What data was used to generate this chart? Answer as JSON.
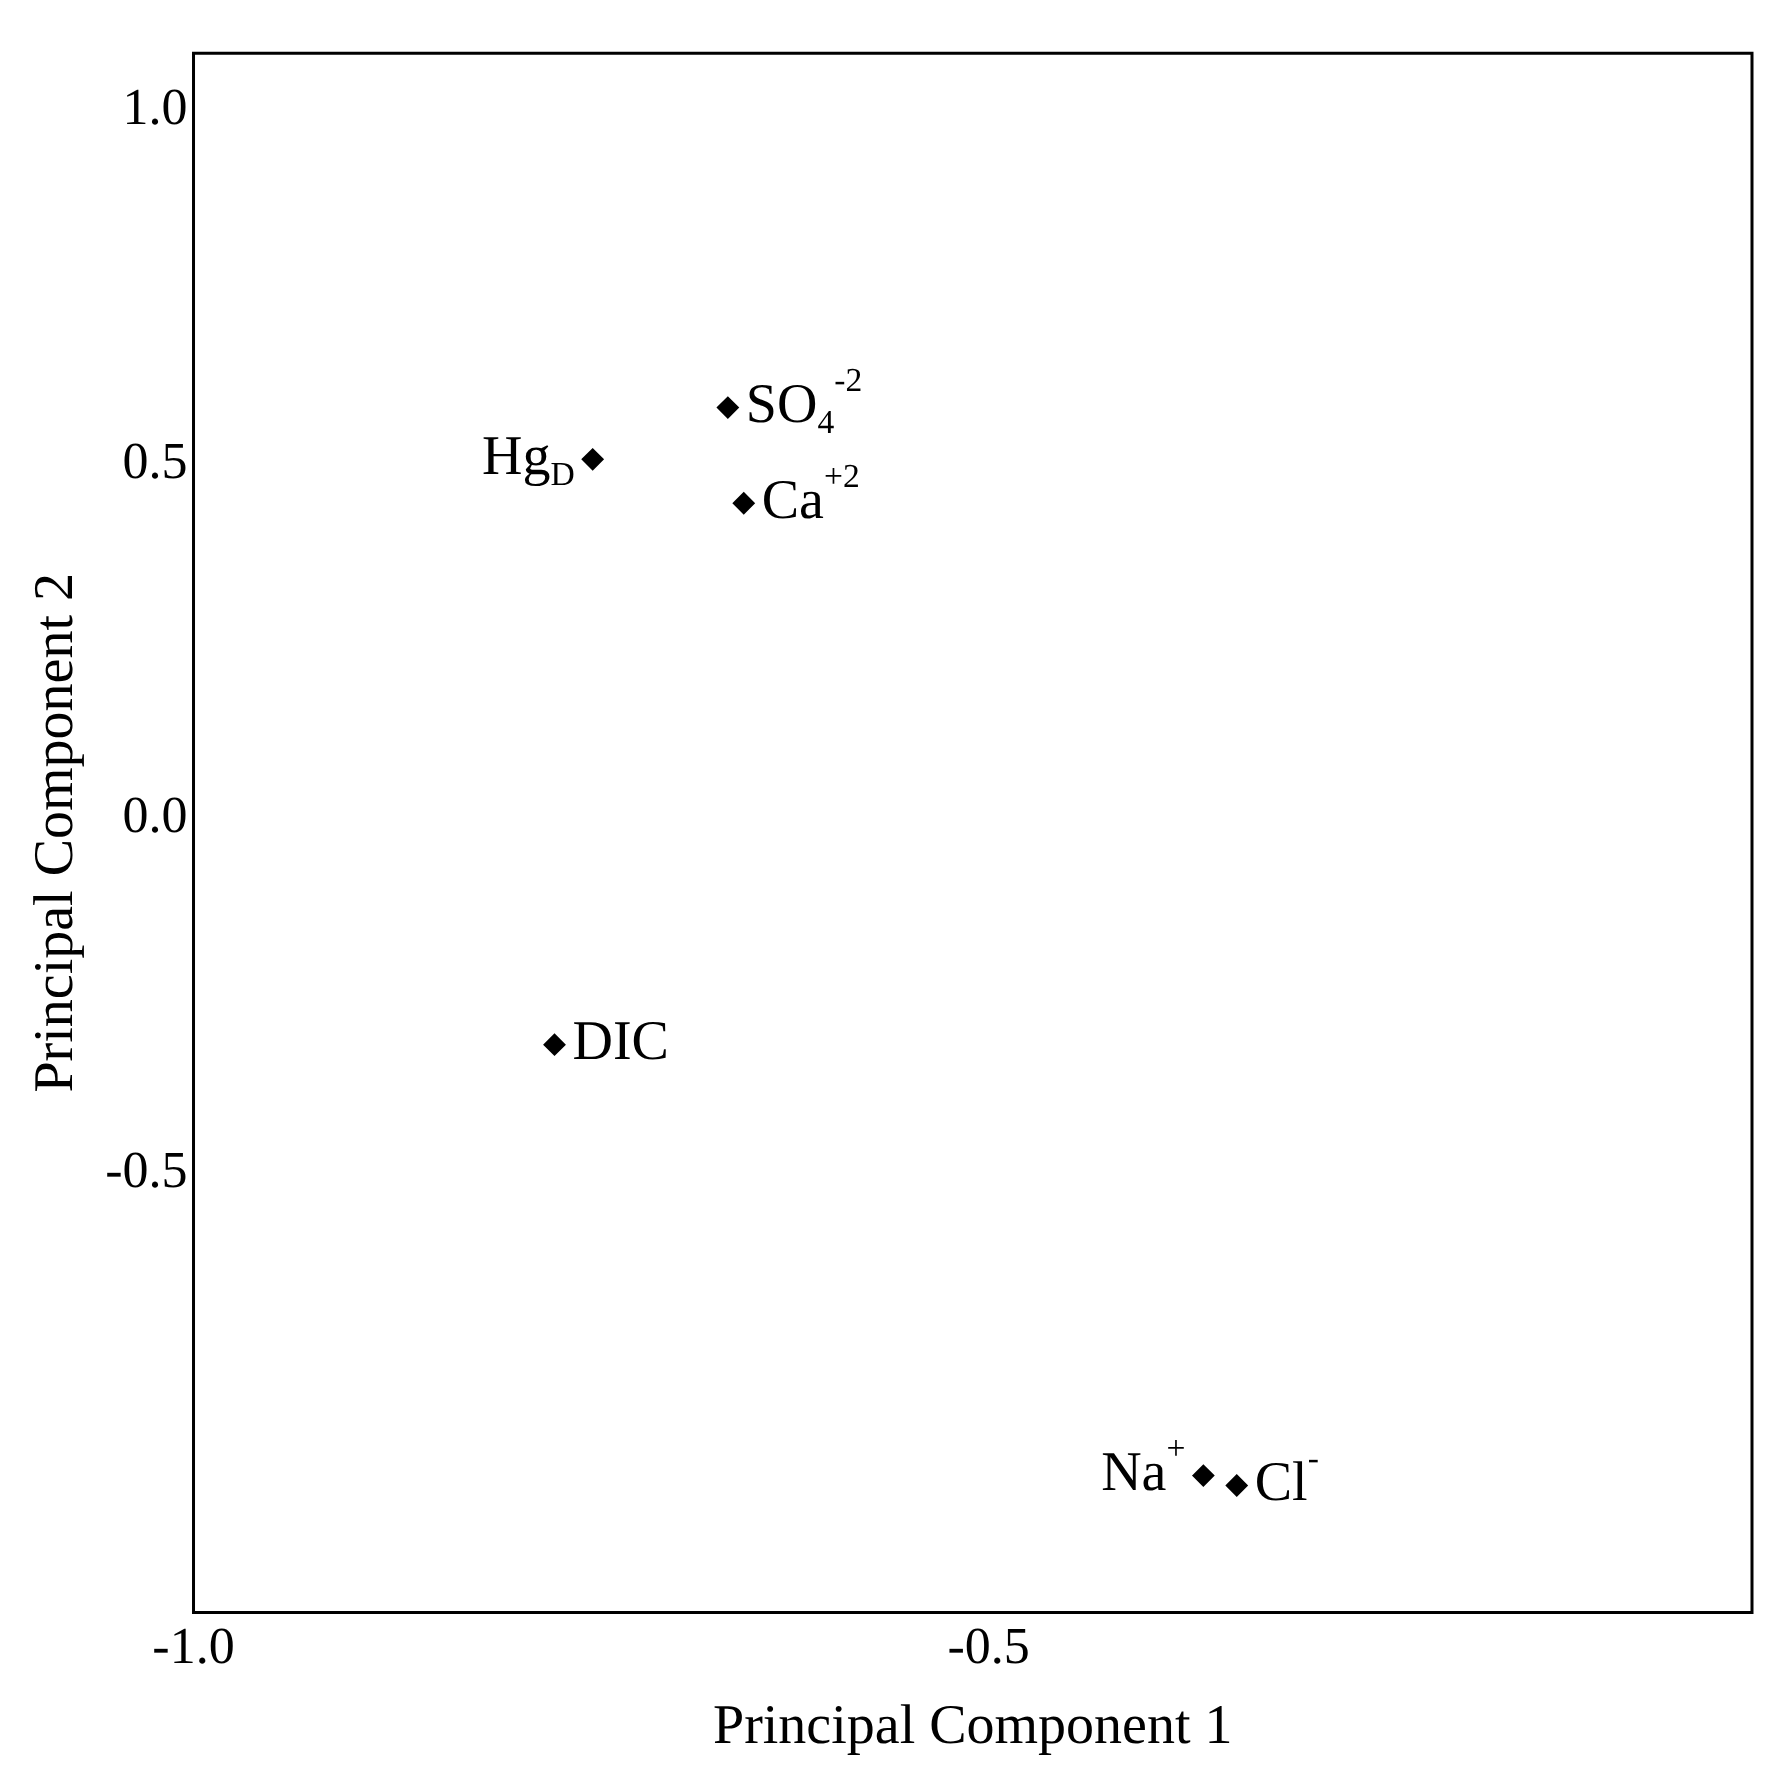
{
  "chart_data": {
    "type": "scatter",
    "xlabel": "Principal Component 1",
    "ylabel": "Principal Component 2",
    "series": [
      {
        "color": "#000000",
        "x": [
          -0.749,
          -0.664,
          -0.654,
          -0.773,
          -0.365,
          -0.344
        ],
        "values": [
          0.507,
          0.58,
          0.445,
          -0.319,
          -0.927,
          -0.941
        ]
      }
    ],
    "annotations": [
      {
        "text": "Hg$_{D}$",
        "x": -0.749,
        "y": 0.507
      },
      {
        "text": "SO$_{4}$$^{-2}$",
        "x": -0.664,
        "y": 0.58
      },
      {
        "text": "Ca$^{+2}$",
        "x": -0.654,
        "y": 0.445
      },
      {
        "text": "DIC",
        "x": -0.773,
        "y": -0.319
      },
      {
        "text": "Na$^{+}$",
        "x": -0.365,
        "y": -0.927
      },
      {
        "text": "Cl$^{-}$",
        "x": -0.344,
        "y": -0.941
      }
    ],
    "xlim": [
      -1.0,
      -0.02
    ],
    "ylim": [
      -1.12,
      1.08
    ],
    "xticks": [
      {
        "value": -1.0,
        "label": "-1.0"
      },
      {
        "value": -0.5,
        "label": "-0.5"
      }
    ],
    "yticks": [
      {
        "value": 1.0,
        "label": "1.0"
      },
      {
        "value": 0.5,
        "label": "0.5"
      },
      {
        "value": 0.0,
        "label": "0.0"
      },
      {
        "value": -0.5,
        "label": "-0.5"
      }
    ],
    "grid": false,
    "legend": false,
    "marker": "diamond"
  }
}
